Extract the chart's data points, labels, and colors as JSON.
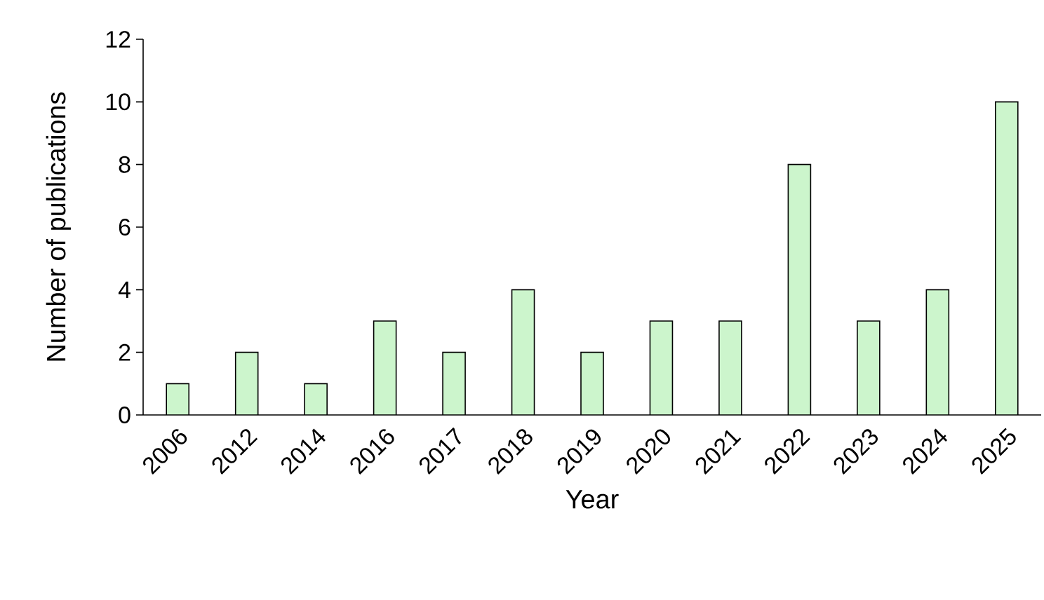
{
  "chart_data": {
    "type": "bar",
    "xlabel": "Year",
    "ylabel": "Number of publications",
    "categories": [
      "2006",
      "2012",
      "2014",
      "2016",
      "2017",
      "2018",
      "2019",
      "2020",
      "2021",
      "2022",
      "2023",
      "2024",
      "2025"
    ],
    "values": [
      1,
      2,
      1,
      3,
      2,
      4,
      2,
      3,
      3,
      8,
      3,
      4,
      10
    ],
    "color": "#ccf5cc",
    "ylim": [
      0,
      12
    ],
    "yticks": [
      0,
      2,
      4,
      6,
      8,
      10,
      12
    ],
    "grid": false
  }
}
